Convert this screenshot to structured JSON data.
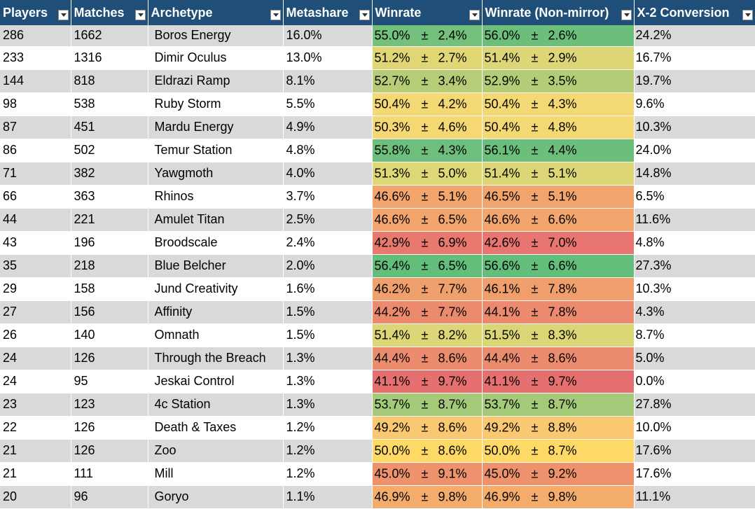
{
  "columns": [
    "Players",
    "Matches",
    "Archetype",
    "Metashare",
    "Winrate",
    "Winrate (Non-mirror)",
    "X-2 Conversion"
  ],
  "pm_symbol": "±",
  "rows": [
    {
      "players": "286",
      "matches": "1662",
      "archetype": "Boros Energy",
      "metashare": "16.0%",
      "winrate": "55.0%",
      "winrate_err": "2.4%",
      "winrate_nm": "56.0%",
      "winrate_nm_err": "2.6%",
      "x2": "24.2%",
      "color": "#73c17c",
      "color_nm": "#6bbf7b"
    },
    {
      "players": "233",
      "matches": "1316",
      "archetype": "Dimir Oculus",
      "metashare": "13.0%",
      "winrate": "51.2%",
      "winrate_err": "2.7%",
      "winrate_nm": "51.4%",
      "winrate_nm_err": "2.9%",
      "x2": "16.7%",
      "color": "#e0d774",
      "color_nm": "#dcd676"
    },
    {
      "players": "144",
      "matches": "818",
      "archetype": "Eldrazi Ramp",
      "metashare": "8.1%",
      "winrate": "52.7%",
      "winrate_err": "3.4%",
      "winrate_nm": "52.9%",
      "winrate_nm_err": "3.5%",
      "x2": "19.7%",
      "color": "#b6cc77",
      "color_nm": "#b4cc77"
    },
    {
      "players": "98",
      "matches": "538",
      "archetype": "Ruby Storm",
      "metashare": "5.5%",
      "winrate": "50.4%",
      "winrate_err": "4.2%",
      "winrate_nm": "50.4%",
      "winrate_nm_err": "4.3%",
      "x2": "9.6%",
      "color": "#f4d873",
      "color_nm": "#f4d873"
    },
    {
      "players": "87",
      "matches": "451",
      "archetype": "Mardu Energy",
      "metashare": "4.9%",
      "winrate": "50.3%",
      "winrate_err": "4.6%",
      "winrate_nm": "50.4%",
      "winrate_nm_err": "4.8%",
      "x2": "10.3%",
      "color": "#f5d873",
      "color_nm": "#f4d873"
    },
    {
      "players": "86",
      "matches": "502",
      "archetype": "Temur Station",
      "metashare": "4.8%",
      "winrate": "55.8%",
      "winrate_err": "4.3%",
      "winrate_nm": "56.1%",
      "winrate_nm_err": "4.4%",
      "x2": "24.0%",
      "color": "#6dbf7b",
      "color_nm": "#6bbf7b"
    },
    {
      "players": "71",
      "matches": "382",
      "archetype": "Yawgmoth",
      "metashare": "4.0%",
      "winrate": "51.3%",
      "winrate_err": "5.0%",
      "winrate_nm": "51.4%",
      "winrate_nm_err": "5.1%",
      "x2": "14.8%",
      "color": "#ded775",
      "color_nm": "#dcd676"
    },
    {
      "players": "66",
      "matches": "363",
      "archetype": "Rhinos",
      "metashare": "3.7%",
      "winrate": "46.6%",
      "winrate_err": "5.1%",
      "winrate_nm": "46.5%",
      "winrate_nm_err": "5.1%",
      "x2": "6.5%",
      "color": "#f2a56d",
      "color_nm": "#f2a46d"
    },
    {
      "players": "44",
      "matches": "221",
      "archetype": "Amulet Titan",
      "metashare": "2.5%",
      "winrate": "46.6%",
      "winrate_err": "6.5%",
      "winrate_nm": "46.6%",
      "winrate_nm_err": "6.6%",
      "x2": "11.6%",
      "color": "#f2a56d",
      "color_nm": "#f2a56d"
    },
    {
      "players": "43",
      "matches": "196",
      "archetype": "Broodscale",
      "metashare": "2.4%",
      "winrate": "42.9%",
      "winrate_err": "6.9%",
      "winrate_nm": "42.6%",
      "winrate_nm_err": "7.0%",
      "x2": "4.8%",
      "color": "#e9796f",
      "color_nm": "#e8756f"
    },
    {
      "players": "35",
      "matches": "218",
      "archetype": "Blue Belcher",
      "metashare": "2.0%",
      "winrate": "56.4%",
      "winrate_err": "6.5%",
      "winrate_nm": "56.6%",
      "winrate_nm_err": "6.6%",
      "x2": "27.3%",
      "color": "#63be7b",
      "color_nm": "#63be7b"
    },
    {
      "players": "29",
      "matches": "158",
      "archetype": "Jund Creativity",
      "metashare": "1.6%",
      "winrate": "46.2%",
      "winrate_err": "7.7%",
      "winrate_nm": "46.1%",
      "winrate_nm_err": "7.8%",
      "x2": "10.3%",
      "color": "#f0a06c",
      "color_nm": "#f09f6c"
    },
    {
      "players": "27",
      "matches": "156",
      "archetype": "Affinity",
      "metashare": "1.5%",
      "winrate": "44.2%",
      "winrate_err": "7.7%",
      "winrate_nm": "44.1%",
      "winrate_nm_err": "7.8%",
      "x2": "4.3%",
      "color": "#ec8a6e",
      "color_nm": "#ec896e"
    },
    {
      "players": "26",
      "matches": "140",
      "archetype": "Omnath",
      "metashare": "1.5%",
      "winrate": "51.4%",
      "winrate_err": "8.2%",
      "winrate_nm": "51.5%",
      "winrate_nm_err": "8.3%",
      "x2": "8.7%",
      "color": "#dcd676",
      "color_nm": "#dad676"
    },
    {
      "players": "24",
      "matches": "126",
      "archetype": "Through the Breach",
      "metashare": "1.3%",
      "winrate": "44.4%",
      "winrate_err": "8.6%",
      "winrate_nm": "44.4%",
      "winrate_nm_err": "8.6%",
      "x2": "5.0%",
      "color": "#ec8c6e",
      "color_nm": "#ec8c6e"
    },
    {
      "players": "24",
      "matches": "95",
      "archetype": "Jeskai Control",
      "metashare": "1.3%",
      "winrate": "41.1%",
      "winrate_err": "9.7%",
      "winrate_nm": "41.1%",
      "winrate_nm_err": "9.7%",
      "x2": "0.0%",
      "color": "#e6706f",
      "color_nm": "#e6706f"
    },
    {
      "players": "23",
      "matches": "123",
      "archetype": "4c Station",
      "metashare": "1.3%",
      "winrate": "53.7%",
      "winrate_err": "8.7%",
      "winrate_nm": "53.7%",
      "winrate_nm_err": "8.7%",
      "x2": "27.8%",
      "color": "#a4c978",
      "color_nm": "#a4c978"
    },
    {
      "players": "22",
      "matches": "126",
      "archetype": "Death & Taxes",
      "metashare": "1.2%",
      "winrate": "49.2%",
      "winrate_err": "8.6%",
      "winrate_nm": "49.2%",
      "winrate_nm_err": "8.8%",
      "x2": "10.0%",
      "color": "#fac870",
      "color_nm": "#fac870"
    },
    {
      "players": "21",
      "matches": "126",
      "archetype": "Zoo",
      "metashare": "1.2%",
      "winrate": "50.0%",
      "winrate_err": "8.6%",
      "winrate_nm": "50.0%",
      "winrate_nm_err": "8.7%",
      "x2": "17.6%",
      "color": "#ffd966",
      "color_nm": "#ffd966"
    },
    {
      "players": "21",
      "matches": "111",
      "archetype": "Mill",
      "metashare": "1.2%",
      "winrate": "45.0%",
      "winrate_err": "9.1%",
      "winrate_nm": "45.0%",
      "winrate_nm_err": "9.2%",
      "x2": "17.6%",
      "color": "#ee926d",
      "color_nm": "#ee926d"
    },
    {
      "players": "20",
      "matches": "96",
      "archetype": "Goryo",
      "metashare": "1.1%",
      "winrate": "46.9%",
      "winrate_err": "9.8%",
      "winrate_nm": "46.9%",
      "winrate_nm_err": "9.8%",
      "x2": "11.1%",
      "color": "#f4ac6d",
      "color_nm": "#f4ac6d"
    }
  ]
}
